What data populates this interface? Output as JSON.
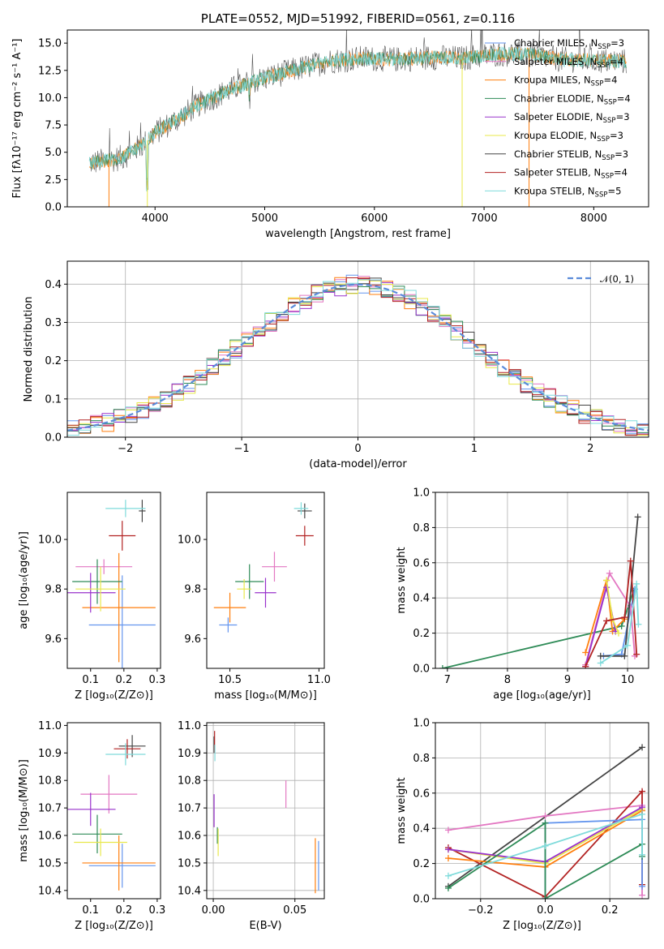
{
  "colors": {
    "chabrier_miles": "#6495ed",
    "salpeter_miles": "#e377c2",
    "kroupa_miles": "#ff7f0e",
    "chabrier_elodie": "#2e8b57",
    "salpeter_elodie": "#9932cc",
    "kroupa_elodie": "#e8e84a",
    "chabrier_stelib": "#444444",
    "salpeter_stelib": "#b22222",
    "kroupa_stelib": "#7fdbdb",
    "normal_curve": "#5b8bd9",
    "grid": "#b0b0b0"
  },
  "chart_data": [
    {
      "id": "spectrum",
      "type": "line",
      "title": "PLATE=0552, MJD=51992, FIBERID=0561, z=0.116",
      "xlabel": "wavelength [Angstrom, rest frame]",
      "ylabel": "Flux [fλ10⁻¹⁷ erg cm⁻² s⁻¹ A⁻¹]",
      "xlim": [
        3200,
        8500
      ],
      "ylim": [
        0,
        16.2
      ],
      "xticks": [
        4000,
        5000,
        6000,
        7000,
        8000
      ],
      "yticks": [
        "0.0",
        "2.5",
        "5.0",
        "7.5",
        "10.0",
        "12.5",
        "15.0"
      ],
      "grid": false,
      "legend_position": "right",
      "legend": [
        {
          "label": "Chabrier MILES, N",
          "sub": "SSP",
          "val": "=3",
          "color": "#6495ed"
        },
        {
          "label": "Salpeter MILES, N",
          "sub": "SSP",
          "val": "=4",
          "color": "#e377c2"
        },
        {
          "label": "Kroupa MILES, N",
          "sub": "SSP",
          "val": "=4",
          "color": "#ff7f0e"
        },
        {
          "label": "Chabrier ELODIE, N",
          "sub": "SSP",
          "val": "=4",
          "color": "#2e8b57"
        },
        {
          "label": "Salpeter ELODIE, N",
          "sub": "SSP",
          "val": "=3",
          "color": "#9932cc"
        },
        {
          "label": "Kroupa ELODIE, N",
          "sub": "SSP",
          "val": "=3",
          "color": "#e8e84a"
        },
        {
          "label": "Chabrier STELIB, N",
          "sub": "SSP",
          "val": "=3",
          "color": "#444444"
        },
        {
          "label": "Salpeter STELIB, N",
          "sub": "SSP",
          "val": "=4",
          "color": "#b22222"
        },
        {
          "label": "Kroupa STELIB, N",
          "sub": "SSP",
          "val": "=5",
          "color": "#7fdbdb"
        }
      ],
      "continuum": [
        [
          3400,
          4.0
        ],
        [
          3700,
          4.5
        ],
        [
          3900,
          5.8
        ],
        [
          4000,
          6.8
        ],
        [
          4200,
          8.0
        ],
        [
          4400,
          9.4
        ],
        [
          4700,
          10.8
        ],
        [
          5000,
          11.8
        ],
        [
          5300,
          12.6
        ],
        [
          5600,
          13.4
        ],
        [
          5900,
          13.6
        ],
        [
          6200,
          13.5
        ],
        [
          6500,
          13.7
        ],
        [
          6800,
          13.6
        ],
        [
          7100,
          14.0
        ],
        [
          7400,
          14.0
        ],
        [
          7700,
          13.5
        ],
        [
          8000,
          13.4
        ],
        [
          8300,
          13.3
        ]
      ]
    },
    {
      "id": "residuals",
      "type": "histogram",
      "xlabel": "(data-model)/error",
      "ylabel": "Normed distribution",
      "xlim": [
        -2.5,
        2.5
      ],
      "ylim": [
        0,
        0.46
      ],
      "xticks": [
        "−2",
        "−1",
        "0",
        "1",
        "2"
      ],
      "yticks": [
        "0.0",
        "0.1",
        "0.2",
        "0.3",
        "0.4"
      ],
      "grid": true,
      "bin_width": 0.1,
      "legend": [
        {
          "label": "𝒩(0, 1)",
          "color": "#5b8bd9"
        }
      ],
      "legend_position": "top-right"
    },
    {
      "id": "age_vs_Z",
      "type": "scatter",
      "xlabel": "Z [log₁₀(Z/Z⊙)]",
      "ylabel": "age  [log₁₀(age/yr)]",
      "xlim": [
        0.03,
        0.31
      ],
      "ylim": [
        9.48,
        10.19
      ],
      "xticks": [
        "0.1",
        "0.2",
        "0.3"
      ],
      "yticks": [
        "9.6",
        "9.8",
        "10.0"
      ],
      "grid": false,
      "points": [
        {
          "model": "chabrier_miles",
          "x": 0.195,
          "xerr": 0.1,
          "y": 9.655,
          "yerr": 0.2
        },
        {
          "model": "salpeter_miles",
          "x": 0.14,
          "xerr": 0.085,
          "y": 9.89,
          "yerr": 0.03
        },
        {
          "model": "kroupa_miles",
          "x": 0.185,
          "xerr": 0.11,
          "y": 9.725,
          "yerr": 0.22
        },
        {
          "model": "chabrier_elodie",
          "x": 0.12,
          "xerr": 0.075,
          "y": 9.83,
          "yerr": 0.09
        },
        {
          "model": "salpeter_elodie",
          "x": 0.1,
          "xerr": 0.075,
          "y": 9.785,
          "yerr": 0.08
        },
        {
          "model": "kroupa_elodie",
          "x": 0.13,
          "xerr": 0.075,
          "y": 9.8,
          "yerr": 0.09
        },
        {
          "model": "chabrier_stelib",
          "x": 0.255,
          "xerr": 0.01,
          "y": 10.115,
          "yerr": 0.045
        },
        {
          "model": "salpeter_stelib",
          "x": 0.195,
          "xerr": 0.04,
          "y": 10.015,
          "yerr": 0.06
        },
        {
          "model": "kroupa_stelib",
          "x": 0.205,
          "xerr": 0.06,
          "y": 10.125,
          "yerr": 0.035
        }
      ]
    },
    {
      "id": "age_vs_mass",
      "type": "scatter",
      "xlabel": "mass [log₁₀(M/M⊙)]",
      "ylabel": "",
      "xlim": [
        10.37,
        11.03
      ],
      "ylim": [
        9.48,
        10.19
      ],
      "xticks": [
        "10.5",
        "11.0"
      ],
      "yticks": [
        "9.6",
        "9.8",
        "10.0"
      ],
      "grid": false,
      "points": [
        {
          "model": "chabrier_miles",
          "x": 10.49,
          "xerr": 0.05,
          "y": 9.655,
          "yerr": 0.03
        },
        {
          "model": "salpeter_miles",
          "x": 10.75,
          "xerr": 0.07,
          "y": 9.89,
          "yerr": 0.06
        },
        {
          "model": "kroupa_miles",
          "x": 10.5,
          "xerr": 0.09,
          "y": 9.725,
          "yerr": 0.06
        },
        {
          "model": "chabrier_elodie",
          "x": 10.61,
          "xerr": 0.08,
          "y": 9.83,
          "yerr": 0.07
        },
        {
          "model": "salpeter_elodie",
          "x": 10.7,
          "xerr": 0.06,
          "y": 9.785,
          "yerr": 0.06
        },
        {
          "model": "kroupa_elodie",
          "x": 10.58,
          "xerr": 0.04,
          "y": 9.8,
          "yerr": 0.04
        },
        {
          "model": "chabrier_stelib",
          "x": 10.92,
          "xerr": 0.04,
          "y": 10.115,
          "yerr": 0.03
        },
        {
          "model": "salpeter_stelib",
          "x": 10.92,
          "xerr": 0.05,
          "y": 10.015,
          "yerr": 0.04
        },
        {
          "model": "kroupa_stelib",
          "x": 10.9,
          "xerr": 0.04,
          "y": 10.125,
          "yerr": 0.025
        }
      ]
    },
    {
      "id": "mass_weight_vs_age",
      "type": "line",
      "xlabel": "age  [log₁₀(age/yr)]",
      "ylabel": "mass weight",
      "xlim": [
        6.8,
        10.35
      ],
      "ylim": [
        0,
        1.0
      ],
      "xticks": [
        "7",
        "8",
        "9",
        "10"
      ],
      "yticks": [
        "0.0",
        "0.2",
        "0.4",
        "0.6",
        "0.8",
        "1.0"
      ],
      "grid": true,
      "series": [
        {
          "model": "chabrier_elodie",
          "x": [
            6.92,
            9.9,
            10.1
          ],
          "y": [
            0.0,
            0.24,
            0.44
          ]
        },
        {
          "model": "chabrier_miles",
          "x": [
            9.6,
            9.9,
            10.12
          ],
          "y": [
            0.07,
            0.08,
            0.45
          ]
        },
        {
          "model": "salpeter_miles",
          "x": [
            9.3,
            9.7,
            10.05,
            10.12
          ],
          "y": [
            0.02,
            0.54,
            0.35,
            0.07
          ]
        },
        {
          "model": "kroupa_miles",
          "x": [
            9.3,
            9.65,
            9.75,
            9.95
          ],
          "y": [
            0.09,
            0.5,
            0.21,
            0.28
          ]
        },
        {
          "model": "salpeter_elodie",
          "x": [
            9.3,
            9.65,
            9.8
          ],
          "y": [
            0.01,
            0.46,
            0.21
          ]
        },
        {
          "model": "kroupa_elodie",
          "x": [
            9.65,
            9.75,
            9.85
          ],
          "y": [
            0.5,
            0.28,
            0.2
          ]
        },
        {
          "model": "chabrier_stelib",
          "x": [
            9.55,
            9.95,
            10.17
          ],
          "y": [
            0.07,
            0.07,
            0.86
          ]
        },
        {
          "model": "salpeter_stelib",
          "x": [
            9.3,
            9.65,
            9.95,
            10.05,
            10.15
          ],
          "y": [
            0.01,
            0.27,
            0.29,
            0.61,
            0.08
          ]
        },
        {
          "model": "kroupa_stelib",
          "x": [
            9.55,
            10.0,
            10.15,
            10.18
          ],
          "y": [
            0.03,
            0.13,
            0.48,
            0.25
          ]
        }
      ]
    },
    {
      "id": "mass_vs_Z",
      "type": "scatter",
      "xlabel": "Z [log₁₀(Z/Z⊙)]",
      "ylabel": "mass [log₁₀(M/M⊙)]",
      "xlim": [
        0.03,
        0.31
      ],
      "ylim": [
        10.37,
        11.01
      ],
      "xticks": [
        "0.1",
        "0.2",
        "0.3"
      ],
      "yticks": [
        "10.4",
        "10.5",
        "10.6",
        "10.7",
        "10.8",
        "10.9",
        "11.0"
      ],
      "grid": false,
      "points": [
        {
          "model": "chabrier_miles",
          "x": 0.195,
          "xerr": 0.1,
          "y": 10.49,
          "yerr": 0.08
        },
        {
          "model": "salpeter_miles",
          "x": 0.155,
          "xerr": 0.085,
          "y": 10.75,
          "yerr": 0.07
        },
        {
          "model": "kroupa_miles",
          "x": 0.185,
          "xerr": 0.11,
          "y": 10.5,
          "yerr": 0.1
        },
        {
          "model": "chabrier_elodie",
          "x": 0.12,
          "xerr": 0.075,
          "y": 10.605,
          "yerr": 0.07
        },
        {
          "model": "salpeter_elodie",
          "x": 0.1,
          "xerr": 0.075,
          "y": 10.695,
          "yerr": 0.06
        },
        {
          "model": "kroupa_elodie",
          "x": 0.13,
          "xerr": 0.08,
          "y": 10.575,
          "yerr": 0.05
        },
        {
          "model": "chabrier_stelib",
          "x": 0.225,
          "xerr": 0.04,
          "y": 10.925,
          "yerr": 0.04
        },
        {
          "model": "salpeter_stelib",
          "x": 0.21,
          "xerr": 0.04,
          "y": 10.915,
          "yerr": 0.035
        },
        {
          "model": "kroupa_stelib",
          "x": 0.205,
          "xerr": 0.06,
          "y": 10.895,
          "yerr": 0.04
        }
      ]
    },
    {
      "id": "mass_vs_ebv",
      "type": "scatter",
      "xlabel": "E(B-V)",
      "ylabel": "",
      "xlim": [
        -0.004,
        0.068
      ],
      "ylim": [
        10.37,
        11.01
      ],
      "xticks": [
        "0.00",
        "0.05"
      ],
      "yticks": [
        "10.4",
        "10.5",
        "10.6",
        "10.7",
        "10.8",
        "10.9",
        "11.0"
      ],
      "grid": true,
      "points": [
        {
          "model": "chabrier_miles",
          "x": 0.0645,
          "xerr": 0,
          "y": 10.49,
          "yerr": 0.09
        },
        {
          "model": "salpeter_miles",
          "x": 0.0445,
          "xerr": 0,
          "y": 10.75,
          "yerr": 0.05
        },
        {
          "model": "kroupa_miles",
          "x": 0.0625,
          "xerr": 0,
          "y": 10.49,
          "yerr": 0.1
        },
        {
          "model": "chabrier_elodie",
          "x": 0.0025,
          "xerr": 0,
          "y": 10.6,
          "yerr": 0.03
        },
        {
          "model": "salpeter_elodie",
          "x": 0.0005,
          "xerr": 0,
          "y": 10.69,
          "yerr": 0.06
        },
        {
          "model": "kroupa_elodie",
          "x": 0.003,
          "xerr": 0,
          "y": 10.575,
          "yerr": 0.05
        },
        {
          "model": "chabrier_stelib",
          "x": 0.0005,
          "xerr": 0,
          "y": 10.93,
          "yerr": 0.03
        },
        {
          "model": "salpeter_stelib",
          "x": 0.0008,
          "xerr": 0,
          "y": 10.94,
          "yerr": 0.04
        },
        {
          "model": "kroupa_stelib",
          "x": 0.001,
          "xerr": 0,
          "y": 10.9,
          "yerr": 0.03
        }
      ]
    },
    {
      "id": "mass_weight_vs_Z",
      "type": "line",
      "xlabel": "Z [log₁₀(Z/Z⊙)]",
      "ylabel": "mass weight",
      "xlim": [
        -0.34,
        0.32
      ],
      "ylim": [
        0,
        1.0
      ],
      "xticks": [
        "−0.2",
        "0.0",
        "0.2"
      ],
      "yticks": [
        "0.0",
        "0.2",
        "0.4",
        "0.6",
        "0.8",
        "1.0"
      ],
      "grid": true,
      "series": [
        {
          "model": "chabrier_stelib",
          "x": [
            -0.3,
            0.3
          ],
          "y": [
            0.07,
            0.86
          ]
        },
        {
          "model": "salpeter_miles",
          "x": [
            -0.3,
            0.0,
            0.3,
            0.3
          ],
          "y": [
            0.39,
            0.47,
            0.53,
            0.02
          ]
        },
        {
          "model": "salpeter_stelib",
          "x": [
            -0.3,
            0.0,
            0.3,
            0.3
          ],
          "y": [
            0.29,
            0.01,
            0.61,
            0.08
          ]
        },
        {
          "model": "kroupa_miles",
          "x": [
            -0.3,
            0.0,
            0.3
          ],
          "y": [
            0.23,
            0.18,
            0.5
          ]
        },
        {
          "model": "kroupa_elodie",
          "x": [
            -0.3,
            0.0,
            0.3
          ],
          "y": [
            0.28,
            0.2,
            0.51
          ]
        },
        {
          "model": "salpeter_elodie",
          "x": [
            -0.3,
            0.0,
            0.3
          ],
          "y": [
            0.28,
            0.21,
            0.52
          ]
        },
        {
          "model": "chabrier_miles",
          "x": [
            0.0,
            0.0,
            0.3,
            0.3
          ],
          "y": [
            0.0,
            0.43,
            0.45,
            0.07
          ]
        },
        {
          "model": "chabrier_elodie",
          "x": [
            -0.3,
            0.0,
            0.0,
            0.3,
            0.3
          ],
          "y": [
            0.06,
            0.43,
            0.0,
            0.31,
            0.24
          ]
        },
        {
          "model": "kroupa_stelib",
          "x": [
            -0.3,
            0.0,
            0.3,
            0.3
          ],
          "y": [
            0.13,
            0.3,
            0.48,
            0.25
          ]
        }
      ]
    }
  ]
}
